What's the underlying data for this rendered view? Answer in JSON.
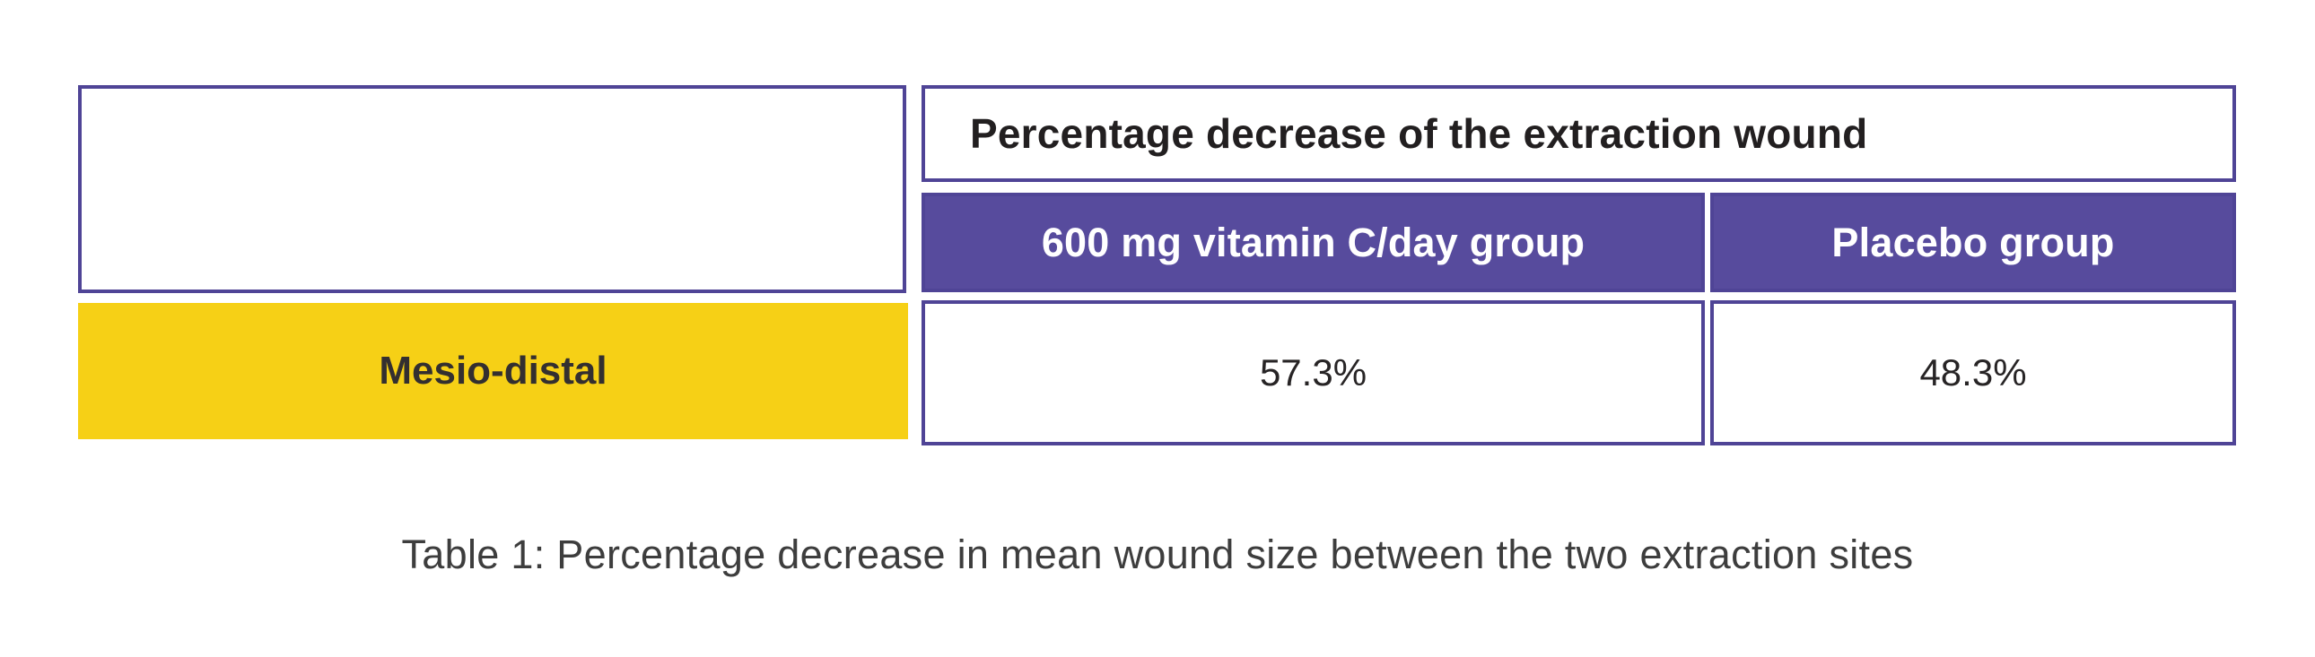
{
  "table": {
    "header": "Percentage decrease of the extraction wound",
    "columns": [
      "600 mg vitamin C/day group",
      "Placebo group"
    ],
    "rows": [
      {
        "label": "Mesio-distal",
        "values": [
          "57.3%",
          "48.3%"
        ]
      }
    ]
  },
  "caption": "Table 1: Percentage decrease in mean wound size between the two extraction sites",
  "colors": {
    "purple_fill": "#574B9D",
    "purple_border": "#4F4496",
    "yellow_fill": "#F6D016",
    "header_text": "#221F20",
    "subheader_text": "#FFFFFF",
    "value_text": "#272425",
    "caption_text": "#3D3D3D",
    "background": "#FFFFFF"
  },
  "chart_data": {
    "type": "table",
    "title": "Percentage decrease of the extraction wound",
    "caption": "Table 1: Percentage decrease in mean wound size between the two extraction sites",
    "columns": [
      "600 mg vitamin C/day group",
      "Placebo group"
    ],
    "row_labels": [
      "Mesio-distal"
    ],
    "values_percent": [
      [
        57.3,
        48.3
      ]
    ]
  }
}
